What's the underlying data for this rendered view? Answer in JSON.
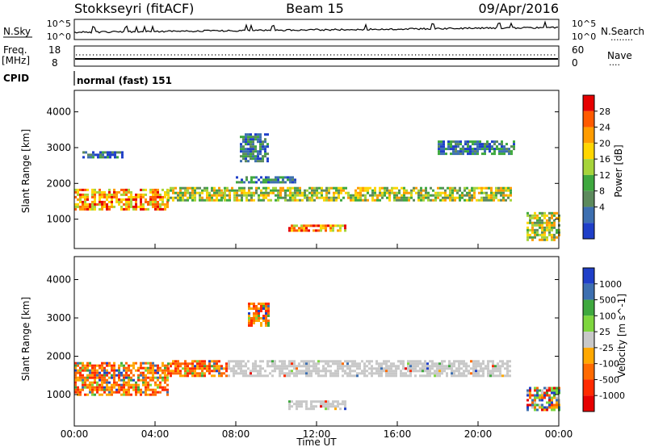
{
  "header": {
    "title": "Stokkseyri (fitACF)",
    "beam": "Beam 15",
    "date": "09/Apr/2016"
  },
  "strips": {
    "nsky_label": "N.Sky",
    "nsearch_label": "N.Search",
    "nsearch_dots": "........",
    "left_top_tick": "10^5",
    "left_bottom_tick": "10^0",
    "right_top_tick": "10^5",
    "right_bottom_tick": "10^0",
    "freq_label": "Freq.",
    "freq_unit": "[MHz]",
    "freq_top": "18",
    "freq_bottom": "8",
    "nave_label": "Nave",
    "nave_dots": "....",
    "nave_top": "60",
    "nave_bottom": "0",
    "cpid_label": "CPID",
    "cpid_value": "normal (fast) 151"
  },
  "chart_data": [
    {
      "type": "heatmap",
      "panel": "power",
      "xlabel": "Time UT",
      "ylabel": "Slant Range [km]",
      "xlim": [
        0,
        24
      ],
      "ylim": [
        180,
        4600
      ],
      "x_ticks": [
        "00:00",
        "04:00",
        "08:00",
        "12:00",
        "16:00",
        "20:00",
        "00:00"
      ],
      "y_ticks": [
        1000,
        2000,
        3000,
        4000
      ],
      "colorbar": {
        "label": "Power [dB]",
        "ticks": [
          "28",
          "24",
          "20",
          "16",
          "12",
          "8",
          "4"
        ],
        "colors": [
          "#e60000",
          "#ff5a00",
          "#ff9c00",
          "#ffd600",
          "#a6d43a",
          "#3ea83e",
          "#5c8a5c",
          "#3d6fb0",
          "#1f3fc8"
        ]
      },
      "echo_bands": [
        {
          "t": [
            0.0,
            4.6
          ],
          "range": [
            1300,
            1850
          ],
          "level": "high"
        },
        {
          "t": [
            4.6,
            7.4
          ],
          "range": [
            1500,
            1900
          ],
          "level": "mid"
        },
        {
          "t": [
            7.4,
            21.6
          ],
          "range": [
            1500,
            1900
          ],
          "level": "mid"
        },
        {
          "t": [
            8.0,
            11.0
          ],
          "range": [
            2000,
            2200
          ],
          "level": "low"
        },
        {
          "t": [
            10.6,
            13.4
          ],
          "range": [
            650,
            850
          ],
          "level": "high"
        },
        {
          "t": [
            0.4,
            2.4
          ],
          "range": [
            2700,
            2900
          ],
          "level": "low"
        },
        {
          "t": [
            8.2,
            9.6
          ],
          "range": [
            2600,
            3400
          ],
          "level": "low"
        },
        {
          "t": [
            18.0,
            21.8
          ],
          "range": [
            2800,
            3200
          ],
          "level": "low"
        },
        {
          "t": [
            22.4,
            24.0
          ],
          "range": [
            400,
            1200
          ],
          "level": "mid"
        }
      ]
    },
    {
      "type": "heatmap",
      "panel": "velocity",
      "xlabel": "Time UT",
      "ylabel": "Slant Range [km]",
      "xlim": [
        0,
        24
      ],
      "ylim": [
        180,
        4600
      ],
      "x_ticks": [
        "00:00",
        "04:00",
        "08:00",
        "12:00",
        "16:00",
        "20:00",
        "00:00"
      ],
      "y_ticks": [
        1000,
        2000,
        3000,
        4000
      ],
      "colorbar": {
        "label": "Velocity [m s^-1]",
        "ticks": [
          "1000",
          "500",
          "100",
          "25",
          "-25",
          "-100",
          "-500",
          "-1000"
        ],
        "colors": [
          "#1f3fc8",
          "#3d6fb0",
          "#3ea83e",
          "#7ed63e",
          "#c8c8c8",
          "#ffa800",
          "#ff6a00",
          "#ff2a00",
          "#e60000"
        ]
      },
      "echo_bands": [
        {
          "t": [
            0.0,
            4.6
          ],
          "range": [
            1000,
            1850
          ],
          "level": "neg"
        },
        {
          "t": [
            4.6,
            7.6
          ],
          "range": [
            1500,
            1900
          ],
          "level": "neg"
        },
        {
          "t": [
            7.6,
            21.6
          ],
          "range": [
            1500,
            1900
          ],
          "level": "ground"
        },
        {
          "t": [
            10.6,
            13.4
          ],
          "range": [
            650,
            850
          ],
          "level": "ground"
        },
        {
          "t": [
            8.6,
            9.6
          ],
          "range": [
            2800,
            3400
          ],
          "level": "neg"
        },
        {
          "t": [
            22.4,
            24.0
          ],
          "range": [
            600,
            1200
          ],
          "level": "mixed"
        }
      ]
    }
  ]
}
